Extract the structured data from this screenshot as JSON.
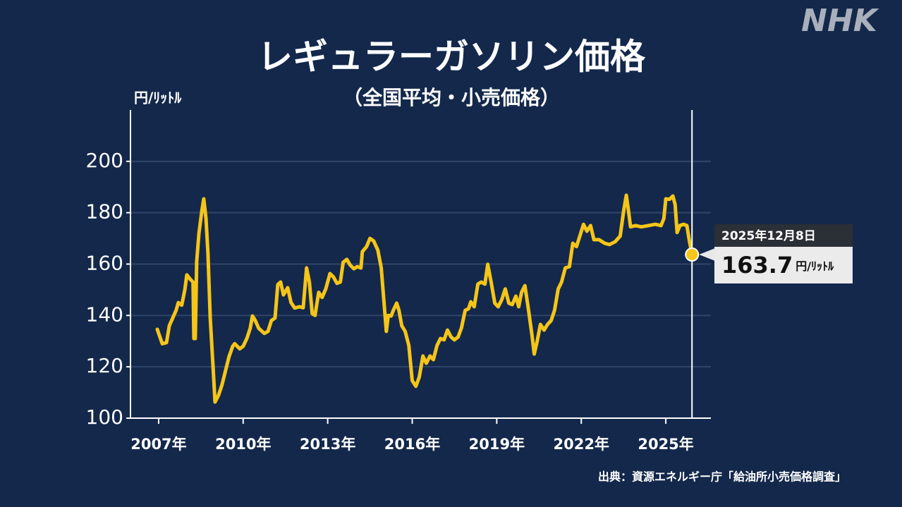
{
  "chart_data": {
    "type": "line",
    "title": "レギュラーガソリン価格",
    "subtitle": "（全国平均・小売価格）",
    "y_label": "円/ﾘｯﾄﾙ",
    "source": "出典：資源エネルギー庁「給油所小売価格調査」",
    "logo": "NHK",
    "color": "#f5c518",
    "xlim": [
      2006,
      2026.6
    ],
    "ylim": [
      100,
      220
    ],
    "yticks": [
      100,
      120,
      140,
      160,
      180,
      200
    ],
    "xticks": [
      {
        "value": 2007,
        "label": "2007年"
      },
      {
        "value": 2010,
        "label": "2010年"
      },
      {
        "value": 2013,
        "label": "2013年"
      },
      {
        "value": 2016,
        "label": "2016年"
      },
      {
        "value": 2019,
        "label": "2019年"
      },
      {
        "value": 2022,
        "label": "2022年"
      },
      {
        "value": 2025,
        "label": "2025年"
      }
    ],
    "grid": true,
    "x": [
      2006.95,
      2007.13,
      2007.28,
      2007.38,
      2007.5,
      2007.62,
      2007.7,
      2007.82,
      2007.93,
      2008.0,
      2008.13,
      2008.22,
      2008.25,
      2008.3,
      2008.35,
      2008.43,
      2008.53,
      2008.6,
      2008.68,
      2008.75,
      2008.83,
      2008.93,
      2009.0,
      2009.13,
      2009.25,
      2009.38,
      2009.5,
      2009.63,
      2009.7,
      2009.88,
      2010.0,
      2010.13,
      2010.25,
      2010.33,
      2010.43,
      2010.55,
      2010.75,
      2010.88,
      2011.0,
      2011.13,
      2011.23,
      2011.33,
      2011.43,
      2011.58,
      2011.7,
      2011.83,
      2012.0,
      2012.13,
      2012.25,
      2012.35,
      2012.45,
      2012.55,
      2012.68,
      2012.8,
      2012.93,
      2013.08,
      2013.2,
      2013.33,
      2013.45,
      2013.55,
      2013.68,
      2013.8,
      2013.93,
      2014.05,
      2014.18,
      2014.23,
      2014.38,
      2014.5,
      2014.63,
      2014.78,
      2014.9,
      2015.0,
      2015.08,
      2015.15,
      2015.25,
      2015.33,
      2015.45,
      2015.53,
      2015.63,
      2015.75,
      2015.88,
      2016.0,
      2016.13,
      2016.25,
      2016.38,
      2016.5,
      2016.63,
      2016.75,
      2016.88,
      2017.0,
      2017.13,
      2017.25,
      2017.38,
      2017.5,
      2017.63,
      2017.75,
      2017.88,
      2018.0,
      2018.08,
      2018.2,
      2018.33,
      2018.45,
      2018.58,
      2018.68,
      2018.8,
      2018.93,
      2019.05,
      2019.18,
      2019.3,
      2019.43,
      2019.55,
      2019.68,
      2019.78,
      2019.88,
      2020.0,
      2020.13,
      2020.25,
      2020.33,
      2020.43,
      2020.55,
      2020.68,
      2020.8,
      2020.93,
      2021.05,
      2021.18,
      2021.3,
      2021.43,
      2021.58,
      2021.7,
      2021.83,
      2021.95,
      2022.08,
      2022.2,
      2022.33,
      2022.45,
      2022.63,
      2022.83,
      2023.0,
      2023.2,
      2023.38,
      2023.5,
      2023.6,
      2023.68,
      2023.75,
      2023.93,
      2024.13,
      2024.38,
      2024.63,
      2024.83,
      2024.93,
      2025.0,
      2025.13,
      2025.25,
      2025.33,
      2025.4,
      2025.5,
      2025.63,
      2025.75,
      2025.83,
      2025.93
    ],
    "values": [
      134.6,
      129,
      129.4,
      136,
      139,
      142,
      145,
      144,
      150,
      155.8,
      154,
      153,
      131,
      131,
      161,
      172,
      180.5,
      185.4,
      177.7,
      164,
      139,
      120,
      106.3,
      109,
      113,
      118.7,
      124,
      128,
      129,
      127,
      128,
      131,
      135,
      139.8,
      138,
      135,
      133,
      133.8,
      138,
      139,
      152,
      153,
      148,
      150.8,
      145,
      142.9,
      143.4,
      143,
      158.5,
      153,
      140.7,
      140,
      149,
      147,
      150.3,
      156.3,
      155,
      152.5,
      153,
      160.7,
      161.8,
      159.6,
      158.2,
      159,
      158.5,
      164.8,
      166.8,
      170,
      169,
      165.4,
      158.5,
      144.8,
      133.8,
      140,
      139.8,
      142,
      144.8,
      142,
      136,
      133.8,
      128.3,
      114.6,
      112.4,
      116,
      124.2,
      121.4,
      124.2,
      122.8,
      128.3,
      131,
      130.5,
      134.3,
      131.6,
      130.5,
      131.6,
      135.2,
      142,
      142.6,
      145.3,
      143.4,
      152.2,
      153,
      152.2,
      159.9,
      153,
      144.8,
      143.4,
      146.2,
      150.3,
      144.8,
      144.2,
      147.5,
      143.4,
      149,
      151.6,
      142,
      132.4,
      125,
      129.7,
      136.5,
      134.3,
      136.5,
      138,
      142,
      150.3,
      153,
      158.5,
      159,
      168.1,
      166.8,
      170.9,
      175.5,
      172.8,
      175,
      169.5,
      169.5,
      168.1,
      167.6,
      168.7,
      170.9,
      180.5,
      186.8,
      180.5,
      174.5,
      175,
      174.5,
      175,
      175.5,
      175,
      177.7,
      185.4,
      185.2,
      186.5,
      183.2,
      172.3,
      175,
      175.5,
      175,
      169.5,
      163.7
    ],
    "annotation": {
      "date": "2025年12月8日",
      "value": 163.7,
      "unit": "円/ﾘｯﾄﾙ"
    }
  }
}
